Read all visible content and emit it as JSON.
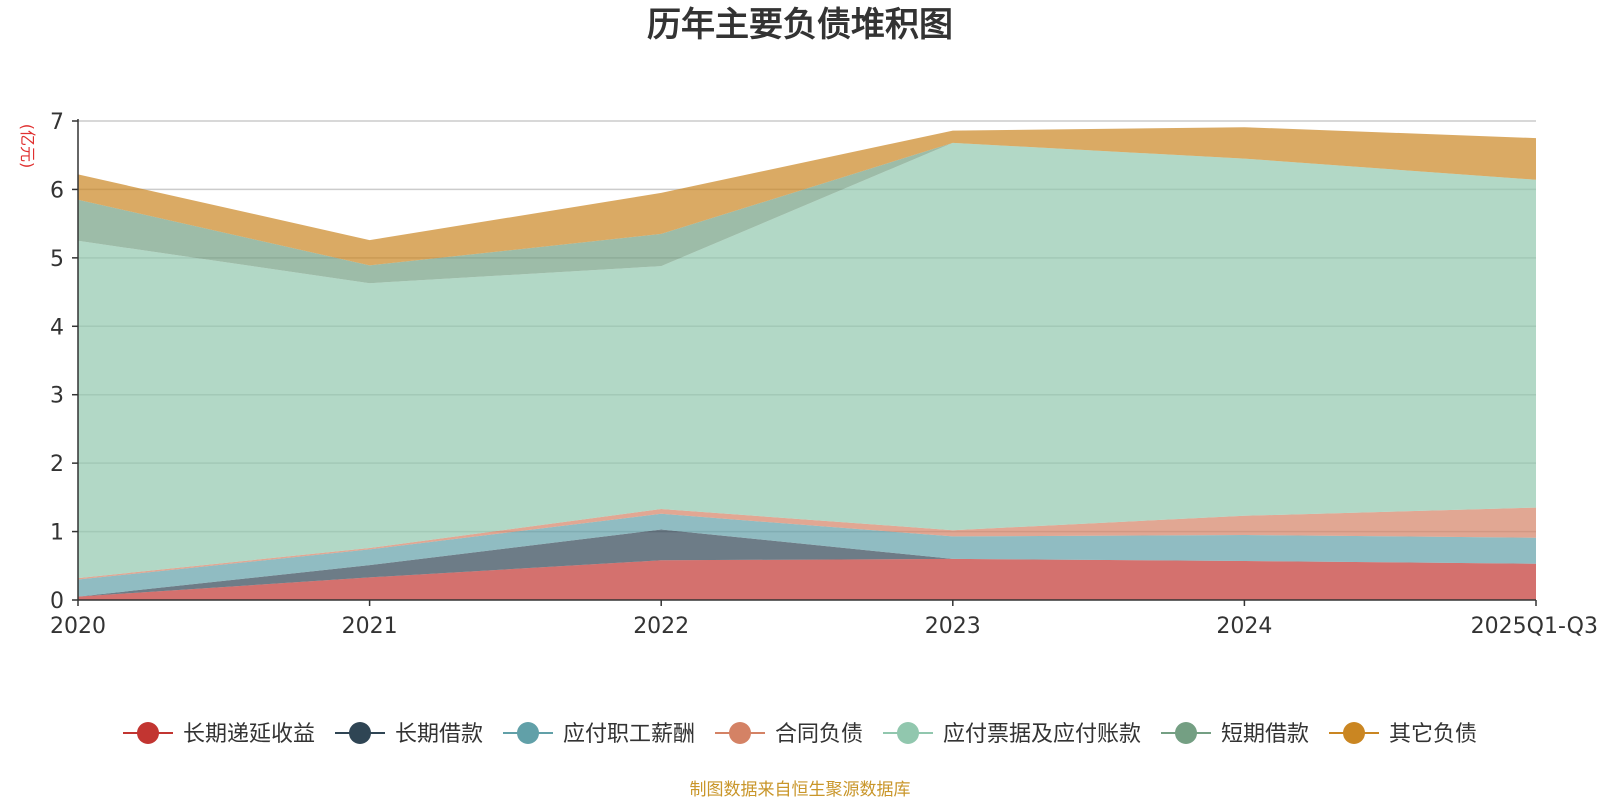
{
  "chart_data": {
    "type": "area",
    "stacked": true,
    "title": "历年主要负债堆积图",
    "unit_label": "(亿元)",
    "source_note": "制图数据来自恒生聚源数据库",
    "categories": [
      "2020",
      "2021",
      "2022",
      "2023",
      "2024",
      "2025Q1-Q3"
    ],
    "ylim": [
      0,
      7
    ],
    "yticks": [
      0,
      1,
      2,
      3,
      4,
      5,
      6,
      7
    ],
    "grid": true,
    "legend_position": "bottom",
    "series": [
      {
        "name": "长期递延收益",
        "color": "#c23531",
        "values": [
          0.05,
          0.33,
          0.58,
          0.6,
          0.57,
          0.53
        ]
      },
      {
        "name": "长期借款",
        "color": "#2f4554",
        "values": [
          0.0,
          0.18,
          0.45,
          0.0,
          0.0,
          0.0
        ]
      },
      {
        "name": "应付职工薪酬",
        "color": "#61a0a8",
        "values": [
          0.25,
          0.23,
          0.23,
          0.33,
          0.38,
          0.38
        ]
      },
      {
        "name": "合同负债",
        "color": "#d48265",
        "values": [
          0.02,
          0.02,
          0.07,
          0.09,
          0.28,
          0.44
        ]
      },
      {
        "name": "应付票据及应付账款",
        "color": "#91c7ae",
        "values": [
          4.93,
          3.87,
          3.55,
          5.66,
          5.22,
          4.79
        ]
      },
      {
        "name": "短期借款",
        "color": "#749f83",
        "values": [
          0.6,
          0.26,
          0.47,
          0.0,
          0.0,
          0.0
        ]
      },
      {
        "name": "其它负债",
        "color": "#ca8622",
        "values": [
          0.37,
          0.37,
          0.6,
          0.18,
          0.46,
          0.61
        ]
      }
    ]
  }
}
